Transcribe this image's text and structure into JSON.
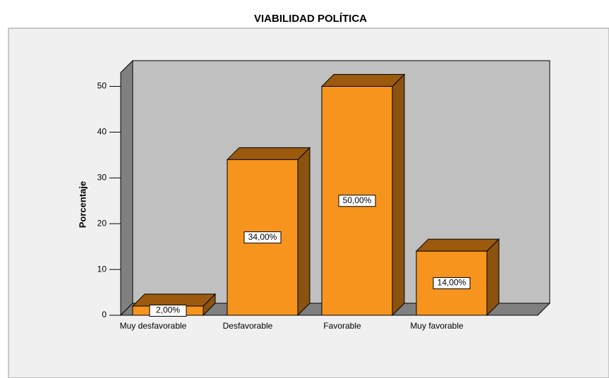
{
  "chart_data": {
    "type": "bar",
    "title": "VIABILIDAD POLÍTICA",
    "y_label": "Porcentaje",
    "categories": [
      "Muy desfavorable",
      "Desfavorable",
      "Favorable",
      "Muy favorable"
    ],
    "values": [
      2,
      34,
      50,
      14
    ],
    "value_labels": [
      "2,00%",
      "34,00%",
      "50,00%",
      "14,00%"
    ],
    "color": "#f7941d",
    "ylim": [
      0,
      53
    ],
    "yticks": [
      0,
      10,
      20,
      30,
      40,
      50
    ]
  }
}
